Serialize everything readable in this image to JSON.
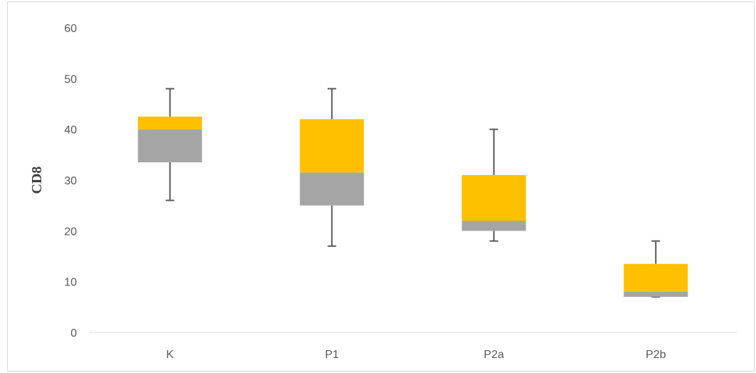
{
  "chart_data": {
    "type": "box",
    "title": "",
    "xlabel": "",
    "ylabel": "CD8",
    "ylim": [
      0,
      60
    ],
    "yticks": [
      0,
      10,
      20,
      30,
      40,
      50,
      60
    ],
    "grid": false,
    "legend": "none",
    "categories": [
      "K",
      "P1",
      "P2a",
      "P2b"
    ],
    "min": [
      26,
      17,
      18,
      7
    ],
    "q1": [
      33.5,
      25,
      20,
      7
    ],
    "median": [
      40,
      31.5,
      22,
      8
    ],
    "q3": [
      42.5,
      42,
      31,
      13.5
    ],
    "max": [
      48,
      48,
      40,
      18
    ],
    "colors": {
      "lower_box": "#a5a5a5",
      "upper_box": "#ffc000",
      "whisker": "#595959",
      "axis": "#d9d9d9"
    }
  }
}
